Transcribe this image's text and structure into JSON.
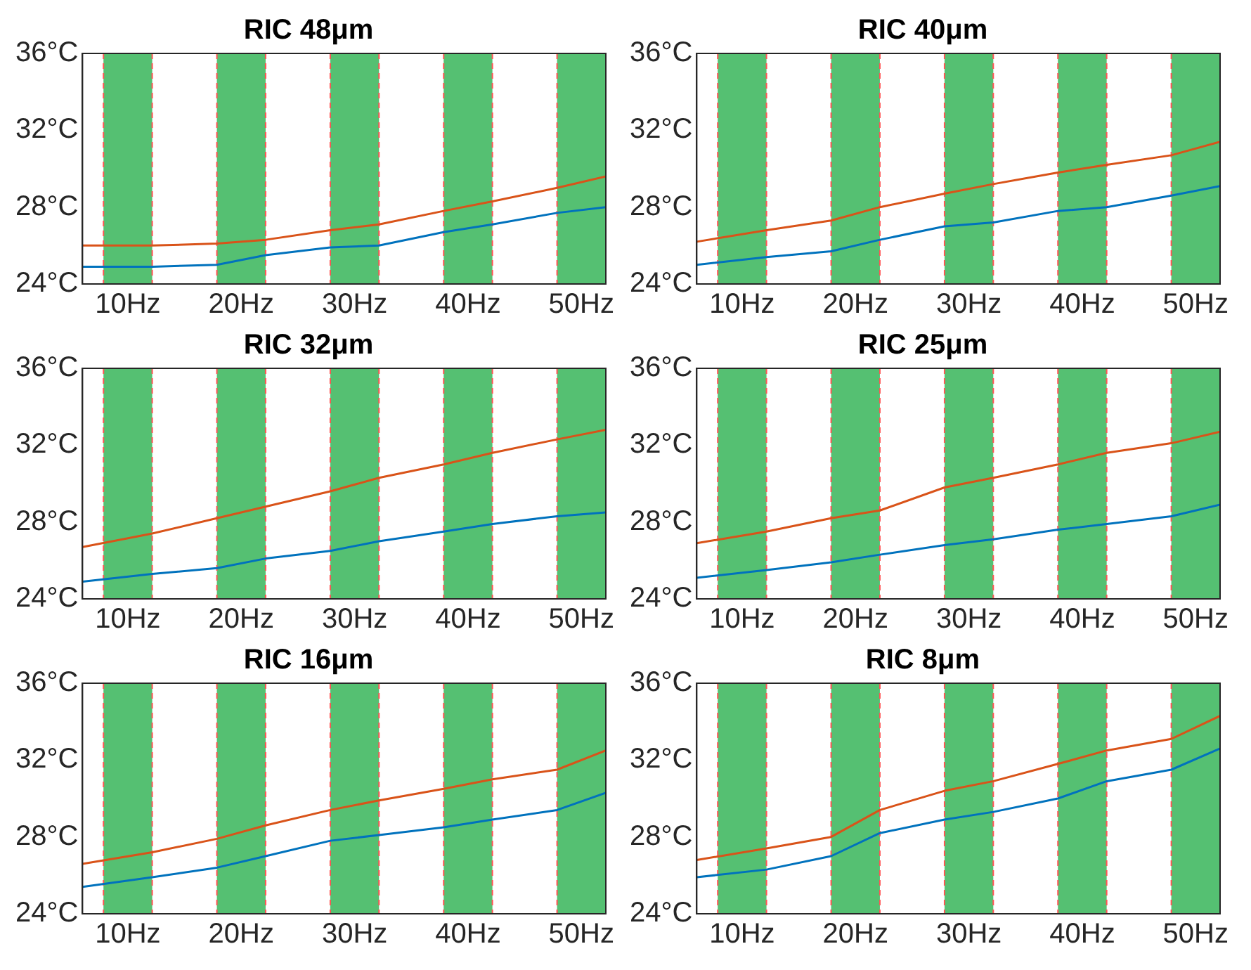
{
  "chart_data": [
    {
      "type": "line",
      "title": "RIC 48μm",
      "x": [
        6,
        12.15,
        17.85,
        22.15,
        27.85,
        32.15,
        37.85,
        42.15,
        47.85,
        52.15
      ],
      "marker": "none",
      "series": [
        {
          "color": "#d95319",
          "values": [
            26.0,
            26.0,
            26.1,
            26.3,
            26.8,
            27.1,
            27.8,
            28.3,
            29.0,
            29.6
          ]
        },
        {
          "color": "#0072bd",
          "values": [
            24.9,
            24.9,
            25.0,
            25.5,
            25.9,
            26.0,
            26.7,
            27.1,
            27.7,
            28.0
          ]
        }
      ],
      "xlim": [
        6,
        52.15
      ],
      "xticks": [
        {
          "value": 10,
          "label": "10Hz"
        },
        {
          "value": 20,
          "label": "20Hz"
        },
        {
          "value": 30,
          "label": "30Hz"
        },
        {
          "value": 40,
          "label": "40Hz"
        },
        {
          "value": 50,
          "label": "50Hz"
        }
      ],
      "ylim": [
        24,
        36
      ],
      "yticks": [
        {
          "value": 24,
          "label": "24°C"
        },
        {
          "value": 28,
          "label": "28°C"
        },
        {
          "value": 32,
          "label": "32°C"
        },
        {
          "value": 36,
          "label": "36°C"
        }
      ],
      "bands": [
        {
          "axis": "x",
          "from": 7.85,
          "to": 12.15,
          "color": "#55c072"
        },
        {
          "axis": "x",
          "from": 17.85,
          "to": 22.15,
          "color": "#55c072"
        },
        {
          "axis": "x",
          "from": 27.85,
          "to": 32.15,
          "color": "#55c072"
        },
        {
          "axis": "x",
          "from": 37.85,
          "to": 42.15,
          "color": "#55c072"
        },
        {
          "axis": "x",
          "from": 47.85,
          "to": 52.15,
          "color": "#55c072"
        }
      ],
      "ref_lines": [
        {
          "axis": "x",
          "value": 7.85,
          "color": "#ff5555",
          "line_style": "dashed"
        },
        {
          "axis": "x",
          "value": 12.15,
          "color": "#ff5555",
          "line_style": "dashed"
        },
        {
          "axis": "x",
          "value": 17.85,
          "color": "#ff5555",
          "line_style": "dashed"
        },
        {
          "axis": "x",
          "value": 22.15,
          "color": "#ff5555",
          "line_style": "dashed"
        },
        {
          "axis": "x",
          "value": 27.85,
          "color": "#ff5555",
          "line_style": "dashed"
        },
        {
          "axis": "x",
          "value": 32.15,
          "color": "#ff5555",
          "line_style": "dashed"
        },
        {
          "axis": "x",
          "value": 37.85,
          "color": "#ff5555",
          "line_style": "dashed"
        },
        {
          "axis": "x",
          "value": 42.15,
          "color": "#ff5555",
          "line_style": "dashed"
        },
        {
          "axis": "x",
          "value": 47.85,
          "color": "#ff5555",
          "line_style": "dashed"
        }
      ]
    },
    {
      "type": "line",
      "title": "RIC 40μm",
      "x": [
        6,
        12.15,
        17.85,
        22.15,
        27.85,
        32.15,
        37.85,
        42.15,
        47.85,
        52.15
      ],
      "marker": "none",
      "series": [
        {
          "color": "#d95319",
          "values": [
            26.2,
            26.8,
            27.3,
            28.0,
            28.7,
            29.2,
            29.8,
            30.2,
            30.7,
            31.4
          ]
        },
        {
          "color": "#0072bd",
          "values": [
            25.0,
            25.4,
            25.7,
            26.3,
            27.0,
            27.2,
            27.8,
            28.0,
            28.6,
            29.1
          ]
        }
      ],
      "xlim": [
        6,
        52.15
      ],
      "xticks": [
        {
          "value": 10,
          "label": "10Hz"
        },
        {
          "value": 20,
          "label": "20Hz"
        },
        {
          "value": 30,
          "label": "30Hz"
        },
        {
          "value": 40,
          "label": "40Hz"
        },
        {
          "value": 50,
          "label": "50Hz"
        }
      ],
      "ylim": [
        24,
        36
      ],
      "yticks": [
        {
          "value": 24,
          "label": "24°C"
        },
        {
          "value": 28,
          "label": "28°C"
        },
        {
          "value": 32,
          "label": "32°C"
        },
        {
          "value": 36,
          "label": "36°C"
        }
      ],
      "bands": [
        {
          "axis": "x",
          "from": 7.85,
          "to": 12.15,
          "color": "#55c072"
        },
        {
          "axis": "x",
          "from": 17.85,
          "to": 22.15,
          "color": "#55c072"
        },
        {
          "axis": "x",
          "from": 27.85,
          "to": 32.15,
          "color": "#55c072"
        },
        {
          "axis": "x",
          "from": 37.85,
          "to": 42.15,
          "color": "#55c072"
        },
        {
          "axis": "x",
          "from": 47.85,
          "to": 52.15,
          "color": "#55c072"
        }
      ],
      "ref_lines": [
        {
          "axis": "x",
          "value": 7.85,
          "color": "#ff5555",
          "line_style": "dashed"
        },
        {
          "axis": "x",
          "value": 12.15,
          "color": "#ff5555",
          "line_style": "dashed"
        },
        {
          "axis": "x",
          "value": 17.85,
          "color": "#ff5555",
          "line_style": "dashed"
        },
        {
          "axis": "x",
          "value": 22.15,
          "color": "#ff5555",
          "line_style": "dashed"
        },
        {
          "axis": "x",
          "value": 27.85,
          "color": "#ff5555",
          "line_style": "dashed"
        },
        {
          "axis": "x",
          "value": 32.15,
          "color": "#ff5555",
          "line_style": "dashed"
        },
        {
          "axis": "x",
          "value": 37.85,
          "color": "#ff5555",
          "line_style": "dashed"
        },
        {
          "axis": "x",
          "value": 42.15,
          "color": "#ff5555",
          "line_style": "dashed"
        },
        {
          "axis": "x",
          "value": 47.85,
          "color": "#ff5555",
          "line_style": "dashed"
        }
      ]
    },
    {
      "type": "line",
      "title": "RIC 32μm",
      "x": [
        6,
        12.15,
        17.85,
        22.15,
        27.85,
        32.15,
        37.85,
        42.15,
        47.85,
        52.15
      ],
      "marker": "none",
      "series": [
        {
          "color": "#d95319",
          "values": [
            26.7,
            27.4,
            28.2,
            28.8,
            29.6,
            30.3,
            31.0,
            31.6,
            32.3,
            32.8
          ]
        },
        {
          "color": "#0072bd",
          "values": [
            24.9,
            25.3,
            25.6,
            26.1,
            26.5,
            27.0,
            27.5,
            27.9,
            28.3,
            28.5
          ]
        }
      ],
      "xlim": [
        6,
        52.15
      ],
      "xticks": [
        {
          "value": 10,
          "label": "10Hz"
        },
        {
          "value": 20,
          "label": "20Hz"
        },
        {
          "value": 30,
          "label": "30Hz"
        },
        {
          "value": 40,
          "label": "40Hz"
        },
        {
          "value": 50,
          "label": "50Hz"
        }
      ],
      "ylim": [
        24,
        36
      ],
      "yticks": [
        {
          "value": 24,
          "label": "24°C"
        },
        {
          "value": 28,
          "label": "28°C"
        },
        {
          "value": 32,
          "label": "32°C"
        },
        {
          "value": 36,
          "label": "36°C"
        }
      ],
      "bands": [
        {
          "axis": "x",
          "from": 7.85,
          "to": 12.15,
          "color": "#55c072"
        },
        {
          "axis": "x",
          "from": 17.85,
          "to": 22.15,
          "color": "#55c072"
        },
        {
          "axis": "x",
          "from": 27.85,
          "to": 32.15,
          "color": "#55c072"
        },
        {
          "axis": "x",
          "from": 37.85,
          "to": 42.15,
          "color": "#55c072"
        },
        {
          "axis": "x",
          "from": 47.85,
          "to": 52.15,
          "color": "#55c072"
        }
      ],
      "ref_lines": [
        {
          "axis": "x",
          "value": 7.85,
          "color": "#ff5555",
          "line_style": "dashed"
        },
        {
          "axis": "x",
          "value": 12.15,
          "color": "#ff5555",
          "line_style": "dashed"
        },
        {
          "axis": "x",
          "value": 17.85,
          "color": "#ff5555",
          "line_style": "dashed"
        },
        {
          "axis": "x",
          "value": 22.15,
          "color": "#ff5555",
          "line_style": "dashed"
        },
        {
          "axis": "x",
          "value": 27.85,
          "color": "#ff5555",
          "line_style": "dashed"
        },
        {
          "axis": "x",
          "value": 32.15,
          "color": "#ff5555",
          "line_style": "dashed"
        },
        {
          "axis": "x",
          "value": 37.85,
          "color": "#ff5555",
          "line_style": "dashed"
        },
        {
          "axis": "x",
          "value": 42.15,
          "color": "#ff5555",
          "line_style": "dashed"
        },
        {
          "axis": "x",
          "value": 47.85,
          "color": "#ff5555",
          "line_style": "dashed"
        }
      ]
    },
    {
      "type": "line",
      "title": "RIC 25μm",
      "x": [
        6,
        12.15,
        17.85,
        22.15,
        27.85,
        32.15,
        37.85,
        42.15,
        47.85,
        52.15
      ],
      "marker": "none",
      "series": [
        {
          "color": "#d95319",
          "values": [
            26.9,
            27.5,
            28.2,
            28.6,
            29.8,
            30.3,
            31.0,
            31.6,
            32.1,
            32.7
          ]
        },
        {
          "color": "#0072bd",
          "values": [
            25.1,
            25.5,
            25.9,
            26.3,
            26.8,
            27.1,
            27.6,
            27.9,
            28.3,
            28.9
          ]
        }
      ],
      "xlim": [
        6,
        52.15
      ],
      "xticks": [
        {
          "value": 10,
          "label": "10Hz"
        },
        {
          "value": 20,
          "label": "20Hz"
        },
        {
          "value": 30,
          "label": "30Hz"
        },
        {
          "value": 40,
          "label": "40Hz"
        },
        {
          "value": 50,
          "label": "50Hz"
        }
      ],
      "ylim": [
        24,
        36
      ],
      "yticks": [
        {
          "value": 24,
          "label": "24°C"
        },
        {
          "value": 28,
          "label": "28°C"
        },
        {
          "value": 32,
          "label": "32°C"
        },
        {
          "value": 36,
          "label": "36°C"
        }
      ],
      "bands": [
        {
          "axis": "x",
          "from": 7.85,
          "to": 12.15,
          "color": "#55c072"
        },
        {
          "axis": "x",
          "from": 17.85,
          "to": 22.15,
          "color": "#55c072"
        },
        {
          "axis": "x",
          "from": 27.85,
          "to": 32.15,
          "color": "#55c072"
        },
        {
          "axis": "x",
          "from": 37.85,
          "to": 42.15,
          "color": "#55c072"
        },
        {
          "axis": "x",
          "from": 47.85,
          "to": 52.15,
          "color": "#55c072"
        }
      ],
      "ref_lines": [
        {
          "axis": "x",
          "value": 7.85,
          "color": "#ff5555",
          "line_style": "dashed"
        },
        {
          "axis": "x",
          "value": 12.15,
          "color": "#ff5555",
          "line_style": "dashed"
        },
        {
          "axis": "x",
          "value": 17.85,
          "color": "#ff5555",
          "line_style": "dashed"
        },
        {
          "axis": "x",
          "value": 22.15,
          "color": "#ff5555",
          "line_style": "dashed"
        },
        {
          "axis": "x",
          "value": 27.85,
          "color": "#ff5555",
          "line_style": "dashed"
        },
        {
          "axis": "x",
          "value": 32.15,
          "color": "#ff5555",
          "line_style": "dashed"
        },
        {
          "axis": "x",
          "value": 37.85,
          "color": "#ff5555",
          "line_style": "dashed"
        },
        {
          "axis": "x",
          "value": 42.15,
          "color": "#ff5555",
          "line_style": "dashed"
        },
        {
          "axis": "x",
          "value": 47.85,
          "color": "#ff5555",
          "line_style": "dashed"
        }
      ]
    },
    {
      "type": "line",
      "title": "RIC 16μm",
      "x": [
        6,
        12.15,
        17.85,
        22.15,
        27.85,
        32.15,
        37.85,
        42.15,
        47.85,
        52.15
      ],
      "marker": "none",
      "series": [
        {
          "color": "#d95319",
          "values": [
            26.6,
            27.2,
            27.9,
            28.6,
            29.4,
            29.9,
            30.5,
            31.0,
            31.5,
            32.5
          ]
        },
        {
          "color": "#0072bd",
          "values": [
            25.4,
            25.9,
            26.4,
            27.0,
            27.8,
            28.1,
            28.5,
            28.9,
            29.4,
            30.3
          ]
        }
      ],
      "xlim": [
        6,
        52.15
      ],
      "xticks": [
        {
          "value": 10,
          "label": "10Hz"
        },
        {
          "value": 20,
          "label": "20Hz"
        },
        {
          "value": 30,
          "label": "30Hz"
        },
        {
          "value": 40,
          "label": "40Hz"
        },
        {
          "value": 50,
          "label": "50Hz"
        }
      ],
      "ylim": [
        24,
        36
      ],
      "yticks": [
        {
          "value": 24,
          "label": "24°C"
        },
        {
          "value": 28,
          "label": "28°C"
        },
        {
          "value": 32,
          "label": "32°C"
        },
        {
          "value": 36,
          "label": "36°C"
        }
      ],
      "bands": [
        {
          "axis": "x",
          "from": 7.85,
          "to": 12.15,
          "color": "#55c072"
        },
        {
          "axis": "x",
          "from": 17.85,
          "to": 22.15,
          "color": "#55c072"
        },
        {
          "axis": "x",
          "from": 27.85,
          "to": 32.15,
          "color": "#55c072"
        },
        {
          "axis": "x",
          "from": 37.85,
          "to": 42.15,
          "color": "#55c072"
        },
        {
          "axis": "x",
          "from": 47.85,
          "to": 52.15,
          "color": "#55c072"
        }
      ],
      "ref_lines": [
        {
          "axis": "x",
          "value": 7.85,
          "color": "#ff5555",
          "line_style": "dashed"
        },
        {
          "axis": "x",
          "value": 12.15,
          "color": "#ff5555",
          "line_style": "dashed"
        },
        {
          "axis": "x",
          "value": 17.85,
          "color": "#ff5555",
          "line_style": "dashed"
        },
        {
          "axis": "x",
          "value": 22.15,
          "color": "#ff5555",
          "line_style": "dashed"
        },
        {
          "axis": "x",
          "value": 27.85,
          "color": "#ff5555",
          "line_style": "dashed"
        },
        {
          "axis": "x",
          "value": 32.15,
          "color": "#ff5555",
          "line_style": "dashed"
        },
        {
          "axis": "x",
          "value": 37.85,
          "color": "#ff5555",
          "line_style": "dashed"
        },
        {
          "axis": "x",
          "value": 42.15,
          "color": "#ff5555",
          "line_style": "dashed"
        },
        {
          "axis": "x",
          "value": 47.85,
          "color": "#ff5555",
          "line_style": "dashed"
        }
      ]
    },
    {
      "type": "line",
      "title": "RIC 8μm",
      "x": [
        6,
        12.15,
        17.85,
        22.15,
        27.85,
        32.15,
        37.85,
        42.15,
        47.85,
        52.15
      ],
      "marker": "none",
      "series": [
        {
          "color": "#d95319",
          "values": [
            26.8,
            27.4,
            28.0,
            29.4,
            30.4,
            30.9,
            31.8,
            32.5,
            33.1,
            34.3
          ]
        },
        {
          "color": "#0072bd",
          "values": [
            25.9,
            26.3,
            27.0,
            28.2,
            28.9,
            29.3,
            30.0,
            30.9,
            31.5,
            32.6
          ]
        }
      ],
      "xlim": [
        6,
        52.15
      ],
      "xticks": [
        {
          "value": 10,
          "label": "10Hz"
        },
        {
          "value": 20,
          "label": "20Hz"
        },
        {
          "value": 30,
          "label": "30Hz"
        },
        {
          "value": 40,
          "label": "40Hz"
        },
        {
          "value": 50,
          "label": "50Hz"
        }
      ],
      "ylim": [
        24,
        36
      ],
      "yticks": [
        {
          "value": 24,
          "label": "24°C"
        },
        {
          "value": 28,
          "label": "28°C"
        },
        {
          "value": 32,
          "label": "32°C"
        },
        {
          "value": 36,
          "label": "36°C"
        }
      ],
      "bands": [
        {
          "axis": "x",
          "from": 7.85,
          "to": 12.15,
          "color": "#55c072"
        },
        {
          "axis": "x",
          "from": 17.85,
          "to": 22.15,
          "color": "#55c072"
        },
        {
          "axis": "x",
          "from": 27.85,
          "to": 32.15,
          "color": "#55c072"
        },
        {
          "axis": "x",
          "from": 37.85,
          "to": 42.15,
          "color": "#55c072"
        },
        {
          "axis": "x",
          "from": 47.85,
          "to": 52.15,
          "color": "#55c072"
        }
      ],
      "ref_lines": [
        {
          "axis": "x",
          "value": 7.85,
          "color": "#ff5555",
          "line_style": "dashed"
        },
        {
          "axis": "x",
          "value": 12.15,
          "color": "#ff5555",
          "line_style": "dashed"
        },
        {
          "axis": "x",
          "value": 17.85,
          "color": "#ff5555",
          "line_style": "dashed"
        },
        {
          "axis": "x",
          "value": 22.15,
          "color": "#ff5555",
          "line_style": "dashed"
        },
        {
          "axis": "x",
          "value": 27.85,
          "color": "#ff5555",
          "line_style": "dashed"
        },
        {
          "axis": "x",
          "value": 32.15,
          "color": "#ff5555",
          "line_style": "dashed"
        },
        {
          "axis": "x",
          "value": 37.85,
          "color": "#ff5555",
          "line_style": "dashed"
        },
        {
          "axis": "x",
          "value": 42.15,
          "color": "#ff5555",
          "line_style": "dashed"
        },
        {
          "axis": "x",
          "value": 47.85,
          "color": "#ff5555",
          "line_style": "dashed"
        }
      ]
    }
  ]
}
